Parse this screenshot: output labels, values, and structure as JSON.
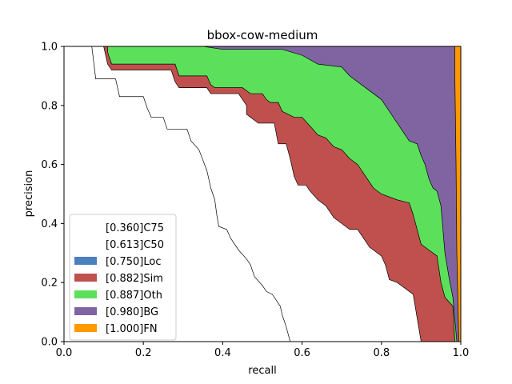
{
  "chart_data": {
    "type": "area",
    "title": "bbox-cow-medium",
    "xlabel": "recall",
    "ylabel": "precision",
    "xlim": [
      0,
      1
    ],
    "ylim": [
      0,
      1
    ],
    "xticks": [
      "0.0",
      "0.2",
      "0.4",
      "0.6",
      "0.8",
      "1.0"
    ],
    "yticks": [
      "0.0",
      "0.2",
      "0.4",
      "0.6",
      "0.8",
      "1.0"
    ],
    "grid": false,
    "legend_position": "lower-left",
    "series": [
      {
        "name": "[0.360]C75",
        "color": "#ffffff",
        "fill": false,
        "points": [
          [
            0.0,
            1.0
          ],
          [
            0.07,
            1.0
          ],
          [
            0.08,
            0.89
          ],
          [
            0.13,
            0.89
          ],
          [
            0.14,
            0.83
          ],
          [
            0.2,
            0.83
          ],
          [
            0.21,
            0.79
          ],
          [
            0.22,
            0.76
          ],
          [
            0.25,
            0.76
          ],
          [
            0.26,
            0.72
          ],
          [
            0.31,
            0.72
          ],
          [
            0.32,
            0.68
          ],
          [
            0.34,
            0.65
          ],
          [
            0.36,
            0.58
          ],
          [
            0.37,
            0.52
          ],
          [
            0.38,
            0.48
          ],
          [
            0.385,
            0.43
          ],
          [
            0.39,
            0.39
          ],
          [
            0.41,
            0.38
          ],
          [
            0.42,
            0.35
          ],
          [
            0.44,
            0.31
          ],
          [
            0.46,
            0.28
          ],
          [
            0.47,
            0.26
          ],
          [
            0.48,
            0.22
          ],
          [
            0.5,
            0.19
          ],
          [
            0.51,
            0.17
          ],
          [
            0.525,
            0.16
          ],
          [
            0.535,
            0.14
          ],
          [
            0.545,
            0.12
          ],
          [
            0.55,
            0.09
          ],
          [
            0.56,
            0.05
          ],
          [
            0.57,
            0.0
          ]
        ]
      },
      {
        "name": "[0.613]C50",
        "color": "#ffffff",
        "fill": false,
        "points": [
          [
            0.0,
            1.0
          ],
          [
            0.1,
            1.0
          ],
          [
            0.11,
            0.94
          ],
          [
            0.12,
            0.92
          ],
          [
            0.27,
            0.92
          ],
          [
            0.28,
            0.88
          ],
          [
            0.29,
            0.86
          ],
          [
            0.36,
            0.86
          ],
          [
            0.37,
            0.84
          ],
          [
            0.44,
            0.84
          ],
          [
            0.45,
            0.82
          ],
          [
            0.46,
            0.8
          ],
          [
            0.46,
            0.77
          ],
          [
            0.47,
            0.76
          ],
          [
            0.49,
            0.74
          ],
          [
            0.53,
            0.74
          ],
          [
            0.54,
            0.67
          ],
          [
            0.56,
            0.67
          ],
          [
            0.57,
            0.62
          ],
          [
            0.58,
            0.56
          ],
          [
            0.59,
            0.53
          ],
          [
            0.61,
            0.53
          ],
          [
            0.62,
            0.51
          ],
          [
            0.64,
            0.48
          ],
          [
            0.66,
            0.46
          ],
          [
            0.68,
            0.42
          ],
          [
            0.7,
            0.4
          ],
          [
            0.72,
            0.38
          ],
          [
            0.74,
            0.38
          ],
          [
            0.76,
            0.34
          ],
          [
            0.77,
            0.32
          ],
          [
            0.8,
            0.29
          ],
          [
            0.81,
            0.26
          ],
          [
            0.82,
            0.21
          ],
          [
            0.84,
            0.2
          ],
          [
            0.86,
            0.18
          ],
          [
            0.88,
            0.16
          ],
          [
            0.89,
            0.08
          ],
          [
            0.9,
            0.0
          ]
        ]
      },
      {
        "name": "[0.750]Loc",
        "color": "#4C7FBF",
        "fill": true,
        "points": [
          [
            0.0,
            1.0
          ],
          [
            0.1,
            1.0
          ],
          [
            0.11,
            0.94
          ],
          [
            0.12,
            0.92
          ],
          [
            0.27,
            0.92
          ],
          [
            0.28,
            0.88
          ],
          [
            0.29,
            0.86
          ],
          [
            0.36,
            0.86
          ],
          [
            0.37,
            0.84
          ],
          [
            0.44,
            0.84
          ],
          [
            0.45,
            0.82
          ],
          [
            0.46,
            0.8
          ],
          [
            0.46,
            0.77
          ],
          [
            0.47,
            0.76
          ],
          [
            0.49,
            0.74
          ],
          [
            0.53,
            0.74
          ],
          [
            0.54,
            0.67
          ],
          [
            0.56,
            0.67
          ],
          [
            0.57,
            0.62
          ],
          [
            0.58,
            0.56
          ],
          [
            0.59,
            0.53
          ],
          [
            0.61,
            0.53
          ],
          [
            0.62,
            0.51
          ],
          [
            0.64,
            0.48
          ],
          [
            0.66,
            0.46
          ],
          [
            0.68,
            0.42
          ],
          [
            0.7,
            0.4
          ],
          [
            0.72,
            0.38
          ],
          [
            0.74,
            0.38
          ],
          [
            0.76,
            0.34
          ],
          [
            0.77,
            0.32
          ],
          [
            0.8,
            0.29
          ],
          [
            0.81,
            0.26
          ],
          [
            0.82,
            0.21
          ],
          [
            0.84,
            0.2
          ],
          [
            0.86,
            0.18
          ],
          [
            0.88,
            0.16
          ],
          [
            0.89,
            0.08
          ],
          [
            0.9,
            0.0
          ]
        ]
      },
      {
        "name": "[0.882]Sim",
        "color": "#C0504D",
        "fill": true,
        "points": [
          [
            0.0,
            1.0
          ],
          [
            0.11,
            1.0
          ],
          [
            0.11,
            0.98
          ],
          [
            0.12,
            0.94
          ],
          [
            0.28,
            0.94
          ],
          [
            0.29,
            0.9
          ],
          [
            0.36,
            0.9
          ],
          [
            0.37,
            0.87
          ],
          [
            0.38,
            0.86
          ],
          [
            0.45,
            0.86
          ],
          [
            0.46,
            0.85
          ],
          [
            0.47,
            0.84
          ],
          [
            0.5,
            0.84
          ],
          [
            0.51,
            0.82
          ],
          [
            0.52,
            0.81
          ],
          [
            0.54,
            0.81
          ],
          [
            0.55,
            0.78
          ],
          [
            0.58,
            0.76
          ],
          [
            0.6,
            0.76
          ],
          [
            0.62,
            0.73
          ],
          [
            0.64,
            0.7
          ],
          [
            0.66,
            0.69
          ],
          [
            0.68,
            0.66
          ],
          [
            0.7,
            0.65
          ],
          [
            0.72,
            0.62
          ],
          [
            0.74,
            0.6
          ],
          [
            0.76,
            0.56
          ],
          [
            0.78,
            0.52
          ],
          [
            0.8,
            0.5
          ],
          [
            0.84,
            0.48
          ],
          [
            0.87,
            0.47
          ],
          [
            0.88,
            0.43
          ],
          [
            0.89,
            0.38
          ],
          [
            0.9,
            0.33
          ],
          [
            0.92,
            0.31
          ],
          [
            0.94,
            0.29
          ],
          [
            0.95,
            0.2
          ],
          [
            0.96,
            0.15
          ],
          [
            0.98,
            0.12
          ],
          [
            0.985,
            0.0
          ]
        ]
      },
      {
        "name": "[0.887]Oth",
        "color": "#5CE05C",
        "fill": true,
        "points": [
          [
            0.0,
            1.0
          ],
          [
            0.35,
            1.0
          ],
          [
            0.4,
            0.99
          ],
          [
            0.55,
            0.99
          ],
          [
            0.6,
            0.97
          ],
          [
            0.64,
            0.94
          ],
          [
            0.7,
            0.93
          ],
          [
            0.72,
            0.9
          ],
          [
            0.76,
            0.86
          ],
          [
            0.8,
            0.82
          ],
          [
            0.84,
            0.74
          ],
          [
            0.87,
            0.68
          ],
          [
            0.89,
            0.67
          ],
          [
            0.9,
            0.63
          ],
          [
            0.91,
            0.6
          ],
          [
            0.92,
            0.55
          ],
          [
            0.93,
            0.52
          ],
          [
            0.94,
            0.51
          ],
          [
            0.95,
            0.46
          ],
          [
            0.96,
            0.3
          ],
          [
            0.97,
            0.22
          ],
          [
            0.98,
            0.15
          ],
          [
            0.99,
            0.0
          ]
        ]
      },
      {
        "name": "[0.980]BG",
        "color": "#8064A2",
        "fill": true,
        "points": [
          [
            0.0,
            1.0
          ],
          [
            0.985,
            1.0
          ],
          [
            0.985,
            0.9
          ],
          [
            0.988,
            0.6
          ],
          [
            0.99,
            0.3
          ],
          [
            0.995,
            0.0
          ]
        ]
      },
      {
        "name": "[1.000]FN",
        "color": "#FF9900",
        "fill": true,
        "points": [
          [
            0.0,
            1.0
          ],
          [
            1.0,
            1.0
          ],
          [
            1.0,
            0.0
          ]
        ]
      }
    ]
  }
}
